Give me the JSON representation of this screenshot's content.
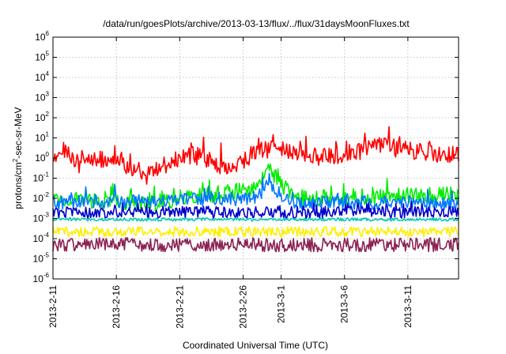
{
  "chart_data": {
    "type": "line",
    "title": "/data/run/goesPlots/archive/2013-03-13/flux/../flux/31daysMoonFluxes.txt",
    "xlabel": "Coordinated Universal Time (UTC)",
    "ylabel_base": "protons/cm",
    "ylabel_sup": "2",
    "ylabel_rest": "-sec-sr-MeV",
    "yscale": "log",
    "ylim": [
      1e-06,
      1000000.0
    ],
    "xlim": [
      "2013-02-11",
      "2013-03-15"
    ],
    "grid": true,
    "y_ticks": [
      {
        "base": "10",
        "exp": "-6",
        "value": 1e-06
      },
      {
        "base": "10",
        "exp": "-5",
        "value": 1e-05
      },
      {
        "base": "10",
        "exp": "-4",
        "value": 0.0001
      },
      {
        "base": "10",
        "exp": "-3",
        "value": 0.001
      },
      {
        "base": "10",
        "exp": "-2",
        "value": 0.01
      },
      {
        "base": "10",
        "exp": "-1",
        "value": 0.1
      },
      {
        "base": "10",
        "exp": "0",
        "value": 1
      },
      {
        "base": "10",
        "exp": "1",
        "value": 10
      },
      {
        "base": "10",
        "exp": "2",
        "value": 100
      },
      {
        "base": "10",
        "exp": "3",
        "value": 1000
      },
      {
        "base": "10",
        "exp": "4",
        "value": 10000
      },
      {
        "base": "10",
        "exp": "5",
        "value": 100000
      },
      {
        "base": "10",
        "exp": "6",
        "value": 1000000
      }
    ],
    "x_ticks": [
      {
        "label": "2013-2-11",
        "date": "2013-02-11"
      },
      {
        "label": "2013-2-16",
        "date": "2013-02-16"
      },
      {
        "label": "2013-2-21",
        "date": "2013-02-21"
      },
      {
        "label": "2013-2-26",
        "date": "2013-02-26"
      },
      {
        "label": "2013-3-1",
        "date": "2013-03-01"
      },
      {
        "label": "2013-3-6",
        "date": "2013-03-06"
      },
      {
        "label": "2013-3-11",
        "date": "2013-03-11"
      }
    ],
    "series": [
      {
        "color": "#ff0000",
        "typical": 1.0,
        "spread": 0.45,
        "spike": 0.35,
        "keypoints": [
          [
            "2013-02-11",
            0.6
          ],
          [
            "2013-02-12",
            3
          ],
          [
            "2013-02-13",
            0.5
          ],
          [
            "2013-02-16",
            1.2
          ],
          [
            "2013-02-18",
            0.1
          ],
          [
            "2013-02-20",
            0.5
          ],
          [
            "2013-02-22",
            1.5
          ],
          [
            "2013-02-25",
            0.3
          ],
          [
            "2013-02-27",
            2
          ],
          [
            "2013-03-01",
            3
          ],
          [
            "2013-03-04",
            1
          ],
          [
            "2013-03-07",
            2
          ],
          [
            "2013-03-09",
            4
          ],
          [
            "2013-03-12",
            2
          ],
          [
            "2013-03-15",
            1.5
          ]
        ]
      },
      {
        "color": "#00ee00",
        "typical": 0.012,
        "spread": 0.4,
        "spike": 0.3,
        "keypoints": [
          [
            "2013-02-11",
            0.01
          ],
          [
            "2013-02-18",
            0.005
          ],
          [
            "2013-02-27",
            0.03
          ],
          [
            "2013-02-28",
            0.3
          ],
          [
            "2013-03-02",
            0.01
          ],
          [
            "2013-03-15",
            0.015
          ]
        ]
      },
      {
        "color": "#0077ff",
        "typical": 0.006,
        "spread": 0.35,
        "spike": 0.3,
        "keypoints": [
          [
            "2013-02-11",
            0.006
          ],
          [
            "2013-02-27",
            0.01
          ],
          [
            "2013-02-28",
            0.05
          ],
          [
            "2013-03-02",
            0.006
          ],
          [
            "2013-03-15",
            0.006
          ]
        ]
      },
      {
        "color": "#0000cc",
        "typical": 0.002,
        "spread": 0.3,
        "spike": 0.2,
        "keypoints": [
          [
            "2013-02-11",
            0.002
          ],
          [
            "2013-03-15",
            0.002
          ]
        ]
      },
      {
        "color": "#00c8b4",
        "typical": 0.0009,
        "spread": 0.08,
        "spike": 0.0,
        "keypoints": [
          [
            "2013-02-11",
            0.0009
          ],
          [
            "2013-03-15",
            0.0009
          ]
        ]
      },
      {
        "color": "#ffee00",
        "typical": 0.00022,
        "spread": 0.25,
        "spike": 0.0,
        "keypoints": [
          [
            "2013-02-11",
            0.00022
          ],
          [
            "2013-03-15",
            0.00022
          ]
        ]
      },
      {
        "color": "#8b2252",
        "typical": 5e-05,
        "spread": 0.35,
        "spike": 0.0,
        "keypoints": [
          [
            "2013-02-11",
            5e-05
          ],
          [
            "2013-03-15",
            5e-05
          ]
        ]
      }
    ]
  }
}
